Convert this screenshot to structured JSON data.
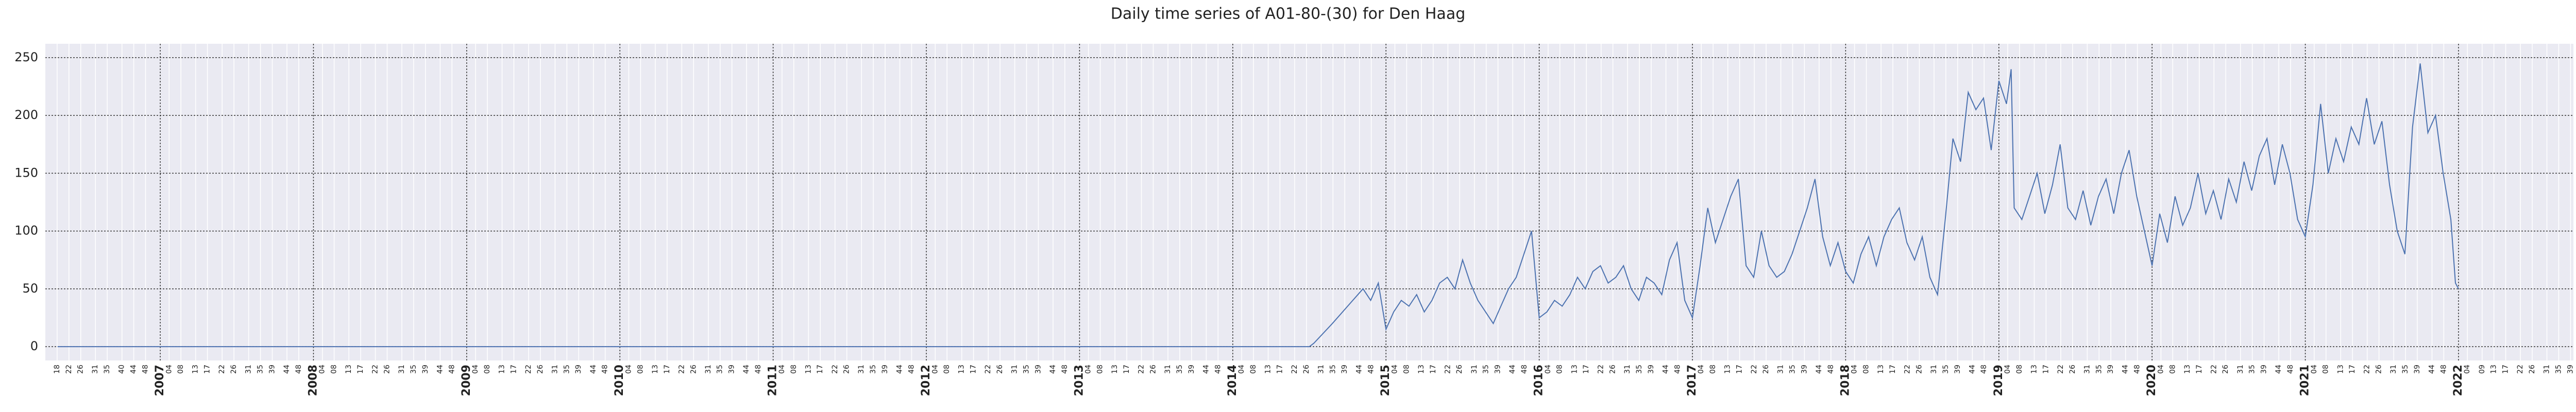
{
  "chart_data": {
    "type": "line",
    "title": "Daily time series of A01-80-(30) for Den Haag",
    "color": "#4c72b0",
    "grid": true,
    "xlim": [
      2006.25,
      2022.75
    ],
    "ylim": [
      -12,
      262
    ],
    "yticks": [
      0,
      50,
      100,
      150,
      200,
      250
    ],
    "xticks": [
      2007,
      2008,
      2009,
      2010,
      2011,
      2012,
      2013,
      2014,
      2015,
      2016,
      2017,
      2018,
      2019,
      2020,
      2021,
      2022
    ],
    "xticks_minor": [
      {
        "value": 2006.327,
        "label": "18"
      },
      {
        "value": 2006.404,
        "label": "22"
      },
      {
        "value": 2006.481,
        "label": "26"
      },
      {
        "value": 2006.577,
        "label": "31"
      },
      {
        "value": 2006.654,
        "label": "35"
      },
      {
        "value": 2006.75,
        "label": "40"
      },
      {
        "value": 2006.827,
        "label": "44"
      },
      {
        "value": 2006.904,
        "label": "48"
      },
      {
        "value": 2007.058,
        "label": "04"
      },
      {
        "value": 2007.135,
        "label": "08"
      },
      {
        "value": 2007.231,
        "label": "13"
      },
      {
        "value": 2007.308,
        "label": "17"
      },
      {
        "value": 2007.404,
        "label": "22"
      },
      {
        "value": 2007.481,
        "label": "26"
      },
      {
        "value": 2007.577,
        "label": "31"
      },
      {
        "value": 2007.654,
        "label": "35"
      },
      {
        "value": 2007.731,
        "label": "39"
      },
      {
        "value": 2007.827,
        "label": "44"
      },
      {
        "value": 2007.904,
        "label": "48"
      },
      {
        "value": 2008.058,
        "label": "04"
      },
      {
        "value": 2008.135,
        "label": "08"
      },
      {
        "value": 2008.231,
        "label": "13"
      },
      {
        "value": 2008.308,
        "label": "17"
      },
      {
        "value": 2008.404,
        "label": "22"
      },
      {
        "value": 2008.481,
        "label": "26"
      },
      {
        "value": 2008.577,
        "label": "31"
      },
      {
        "value": 2008.654,
        "label": "35"
      },
      {
        "value": 2008.731,
        "label": "39"
      },
      {
        "value": 2008.827,
        "label": "44"
      },
      {
        "value": 2008.904,
        "label": "48"
      },
      {
        "value": 2009.058,
        "label": "04"
      },
      {
        "value": 2009.135,
        "label": "08"
      },
      {
        "value": 2009.231,
        "label": "13"
      },
      {
        "value": 2009.308,
        "label": "17"
      },
      {
        "value": 2009.404,
        "label": "22"
      },
      {
        "value": 2009.481,
        "label": "26"
      },
      {
        "value": 2009.577,
        "label": "31"
      },
      {
        "value": 2009.654,
        "label": "35"
      },
      {
        "value": 2009.731,
        "label": "39"
      },
      {
        "value": 2009.827,
        "label": "44"
      },
      {
        "value": 2009.904,
        "label": "48"
      },
      {
        "value": 2010.058,
        "label": "04"
      },
      {
        "value": 2010.135,
        "label": "08"
      },
      {
        "value": 2010.231,
        "label": "13"
      },
      {
        "value": 2010.308,
        "label": "17"
      },
      {
        "value": 2010.404,
        "label": "22"
      },
      {
        "value": 2010.481,
        "label": "26"
      },
      {
        "value": 2010.577,
        "label": "31"
      },
      {
        "value": 2010.654,
        "label": "35"
      },
      {
        "value": 2010.731,
        "label": "39"
      },
      {
        "value": 2010.827,
        "label": "44"
      },
      {
        "value": 2010.904,
        "label": "48"
      },
      {
        "value": 2011.058,
        "label": "04"
      },
      {
        "value": 2011.135,
        "label": "08"
      },
      {
        "value": 2011.231,
        "label": "13"
      },
      {
        "value": 2011.308,
        "label": "17"
      },
      {
        "value": 2011.404,
        "label": "22"
      },
      {
        "value": 2011.481,
        "label": "26"
      },
      {
        "value": 2011.577,
        "label": "31"
      },
      {
        "value": 2011.654,
        "label": "35"
      },
      {
        "value": 2011.731,
        "label": "39"
      },
      {
        "value": 2011.827,
        "label": "44"
      },
      {
        "value": 2011.904,
        "label": "48"
      },
      {
        "value": 2012.058,
        "label": "04"
      },
      {
        "value": 2012.135,
        "label": "08"
      },
      {
        "value": 2012.231,
        "label": "13"
      },
      {
        "value": 2012.308,
        "label": "17"
      },
      {
        "value": 2012.404,
        "label": "22"
      },
      {
        "value": 2012.481,
        "label": "26"
      },
      {
        "value": 2012.577,
        "label": "31"
      },
      {
        "value": 2012.654,
        "label": "35"
      },
      {
        "value": 2012.731,
        "label": "39"
      },
      {
        "value": 2012.827,
        "label": "44"
      },
      {
        "value": 2012.904,
        "label": "48"
      },
      {
        "value": 2013.058,
        "label": "04"
      },
      {
        "value": 2013.135,
        "label": "08"
      },
      {
        "value": 2013.231,
        "label": "13"
      },
      {
        "value": 2013.308,
        "label": "17"
      },
      {
        "value": 2013.404,
        "label": "22"
      },
      {
        "value": 2013.481,
        "label": "26"
      },
      {
        "value": 2013.577,
        "label": "31"
      },
      {
        "value": 2013.654,
        "label": "35"
      },
      {
        "value": 2013.731,
        "label": "39"
      },
      {
        "value": 2013.827,
        "label": "44"
      },
      {
        "value": 2013.904,
        "label": "48"
      },
      {
        "value": 2014.058,
        "label": "04"
      },
      {
        "value": 2014.135,
        "label": "08"
      },
      {
        "value": 2014.231,
        "label": "13"
      },
      {
        "value": 2014.308,
        "label": "17"
      },
      {
        "value": 2014.404,
        "label": "22"
      },
      {
        "value": 2014.481,
        "label": "26"
      },
      {
        "value": 2014.577,
        "label": "31"
      },
      {
        "value": 2014.654,
        "label": "35"
      },
      {
        "value": 2014.731,
        "label": "39"
      },
      {
        "value": 2014.827,
        "label": "44"
      },
      {
        "value": 2014.904,
        "label": "48"
      },
      {
        "value": 2015.058,
        "label": "04"
      },
      {
        "value": 2015.135,
        "label": "08"
      },
      {
        "value": 2015.231,
        "label": "13"
      },
      {
        "value": 2015.308,
        "label": "17"
      },
      {
        "value": 2015.404,
        "label": "22"
      },
      {
        "value": 2015.481,
        "label": "26"
      },
      {
        "value": 2015.577,
        "label": "31"
      },
      {
        "value": 2015.654,
        "label": "35"
      },
      {
        "value": 2015.731,
        "label": "39"
      },
      {
        "value": 2015.827,
        "label": "44"
      },
      {
        "value": 2015.904,
        "label": "48"
      },
      {
        "value": 2016.058,
        "label": "04"
      },
      {
        "value": 2016.135,
        "label": "08"
      },
      {
        "value": 2016.231,
        "label": "13"
      },
      {
        "value": 2016.308,
        "label": "17"
      },
      {
        "value": 2016.404,
        "label": "22"
      },
      {
        "value": 2016.481,
        "label": "26"
      },
      {
        "value": 2016.577,
        "label": "31"
      },
      {
        "value": 2016.654,
        "label": "35"
      },
      {
        "value": 2016.731,
        "label": "39"
      },
      {
        "value": 2016.827,
        "label": "44"
      },
      {
        "value": 2016.904,
        "label": "48"
      },
      {
        "value": 2017.058,
        "label": "04"
      },
      {
        "value": 2017.135,
        "label": "08"
      },
      {
        "value": 2017.231,
        "label": "13"
      },
      {
        "value": 2017.308,
        "label": "17"
      },
      {
        "value": 2017.404,
        "label": "22"
      },
      {
        "value": 2017.481,
        "label": "26"
      },
      {
        "value": 2017.577,
        "label": "31"
      },
      {
        "value": 2017.654,
        "label": "35"
      },
      {
        "value": 2017.731,
        "label": "39"
      },
      {
        "value": 2017.827,
        "label": "44"
      },
      {
        "value": 2017.904,
        "label": "48"
      },
      {
        "value": 2018.058,
        "label": "04"
      },
      {
        "value": 2018.135,
        "label": "08"
      },
      {
        "value": 2018.231,
        "label": "13"
      },
      {
        "value": 2018.308,
        "label": "17"
      },
      {
        "value": 2018.404,
        "label": "22"
      },
      {
        "value": 2018.481,
        "label": "26"
      },
      {
        "value": 2018.577,
        "label": "31"
      },
      {
        "value": 2018.654,
        "label": "35"
      },
      {
        "value": 2018.731,
        "label": "39"
      },
      {
        "value": 2018.827,
        "label": "44"
      },
      {
        "value": 2018.904,
        "label": "48"
      },
      {
        "value": 2019.058,
        "label": "04"
      },
      {
        "value": 2019.135,
        "label": "08"
      },
      {
        "value": 2019.231,
        "label": "13"
      },
      {
        "value": 2019.308,
        "label": "17"
      },
      {
        "value": 2019.404,
        "label": "22"
      },
      {
        "value": 2019.481,
        "label": "26"
      },
      {
        "value": 2019.577,
        "label": "31"
      },
      {
        "value": 2019.654,
        "label": "35"
      },
      {
        "value": 2019.731,
        "label": "39"
      },
      {
        "value": 2019.827,
        "label": "44"
      },
      {
        "value": 2019.904,
        "label": "48"
      },
      {
        "value": 2020.058,
        "label": "04"
      },
      {
        "value": 2020.135,
        "label": "08"
      },
      {
        "value": 2020.231,
        "label": "13"
      },
      {
        "value": 2020.308,
        "label": "17"
      },
      {
        "value": 2020.404,
        "label": "22"
      },
      {
        "value": 2020.481,
        "label": "26"
      },
      {
        "value": 2020.577,
        "label": "31"
      },
      {
        "value": 2020.654,
        "label": "35"
      },
      {
        "value": 2020.731,
        "label": "39"
      },
      {
        "value": 2020.827,
        "label": "44"
      },
      {
        "value": 2020.904,
        "label": "48"
      },
      {
        "value": 2021.058,
        "label": "04"
      },
      {
        "value": 2021.135,
        "label": "08"
      },
      {
        "value": 2021.231,
        "label": "13"
      },
      {
        "value": 2021.308,
        "label": "17"
      },
      {
        "value": 2021.404,
        "label": "22"
      },
      {
        "value": 2021.481,
        "label": "26"
      },
      {
        "value": 2021.577,
        "label": "31"
      },
      {
        "value": 2021.654,
        "label": "35"
      },
      {
        "value": 2021.731,
        "label": "39"
      },
      {
        "value": 2021.827,
        "label": "44"
      },
      {
        "value": 2021.904,
        "label": "48"
      },
      {
        "value": 2022.058,
        "label": "04"
      },
      {
        "value": 2022.154,
        "label": "09"
      },
      {
        "value": 2022.231,
        "label": "13"
      },
      {
        "value": 2022.308,
        "label": "17"
      },
      {
        "value": 2022.404,
        "label": "22"
      },
      {
        "value": 2022.481,
        "label": "26"
      },
      {
        "value": 2022.577,
        "label": "31"
      },
      {
        "value": 2022.654,
        "label": "35"
      },
      {
        "value": 2022.731,
        "label": "39"
      }
    ],
    "x": [
      2006.33,
      2014.5,
      2014.53,
      2014.65,
      2014.75,
      2014.85,
      2014.9,
      2014.95,
      2015.0,
      2015.05,
      2015.1,
      2015.15,
      2015.2,
      2015.25,
      2015.3,
      2015.35,
      2015.4,
      2015.45,
      2015.5,
      2015.55,
      2015.6,
      2015.65,
      2015.7,
      2015.75,
      2015.8,
      2015.85,
      2015.9,
      2015.95,
      2016.0,
      2016.05,
      2016.1,
      2016.15,
      2016.2,
      2016.25,
      2016.3,
      2016.35,
      2016.4,
      2016.45,
      2016.5,
      2016.55,
      2016.6,
      2016.65,
      2016.7,
      2016.75,
      2016.8,
      2016.85,
      2016.9,
      2016.95,
      2017.0,
      2017.05,
      2017.1,
      2017.15,
      2017.2,
      2017.25,
      2017.3,
      2017.35,
      2017.4,
      2017.45,
      2017.5,
      2017.55,
      2017.6,
      2017.65,
      2017.7,
      2017.75,
      2017.8,
      2017.85,
      2017.9,
      2017.95,
      2018.0,
      2018.05,
      2018.1,
      2018.15,
      2018.2,
      2018.25,
      2018.3,
      2018.35,
      2018.4,
      2018.45,
      2018.5,
      2018.55,
      2018.6,
      2018.65,
      2018.7,
      2018.75,
      2018.8,
      2018.85,
      2018.9,
      2018.95,
      2019.0,
      2019.05,
      2019.08,
      2019.1,
      2019.15,
      2019.2,
      2019.25,
      2019.3,
      2019.35,
      2019.4,
      2019.45,
      2019.5,
      2019.55,
      2019.6,
      2019.65,
      2019.7,
      2019.75,
      2019.8,
      2019.85,
      2019.9,
      2019.95,
      2020.0,
      2020.05,
      2020.1,
      2020.15,
      2020.2,
      2020.25,
      2020.3,
      2020.35,
      2020.4,
      2020.45,
      2020.5,
      2020.55,
      2020.6,
      2020.65,
      2020.7,
      2020.75,
      2020.8,
      2020.85,
      2020.9,
      2020.95,
      2021.0,
      2021.05,
      2021.1,
      2021.15,
      2021.2,
      2021.25,
      2021.3,
      2021.35,
      2021.4,
      2021.45,
      2021.5,
      2021.55,
      2021.6,
      2021.65,
      2021.7,
      2021.75,
      2021.8,
      2021.85,
      2021.9,
      2021.95,
      2021.98,
      2022.0
    ],
    "values": [
      0,
      0,
      3,
      20,
      35,
      50,
      40,
      55,
      15,
      30,
      40,
      35,
      45,
      30,
      40,
      55,
      60,
      50,
      75,
      55,
      40,
      30,
      20,
      35,
      50,
      60,
      80,
      100,
      25,
      30,
      40,
      35,
      45,
      60,
      50,
      65,
      70,
      55,
      60,
      70,
      50,
      40,
      60,
      55,
      45,
      75,
      90,
      40,
      25,
      70,
      120,
      90,
      110,
      130,
      145,
      70,
      60,
      100,
      70,
      60,
      65,
      80,
      100,
      120,
      145,
      95,
      70,
      90,
      65,
      55,
      80,
      95,
      70,
      95,
      110,
      120,
      90,
      75,
      95,
      60,
      45,
      110,
      180,
      160,
      220,
      205,
      215,
      170,
      230,
      210,
      240,
      120,
      110,
      130,
      150,
      115,
      140,
      175,
      120,
      110,
      135,
      105,
      130,
      145,
      115,
      150,
      170,
      130,
      100,
      70,
      115,
      90,
      130,
      105,
      120,
      150,
      115,
      135,
      110,
      145,
      125,
      160,
      135,
      165,
      180,
      140,
      175,
      150,
      110,
      95,
      140,
      210,
      150,
      180,
      160,
      190,
      175,
      215,
      175,
      195,
      140,
      100,
      80,
      190,
      245,
      185,
      200,
      150,
      110,
      55,
      50
    ]
  }
}
